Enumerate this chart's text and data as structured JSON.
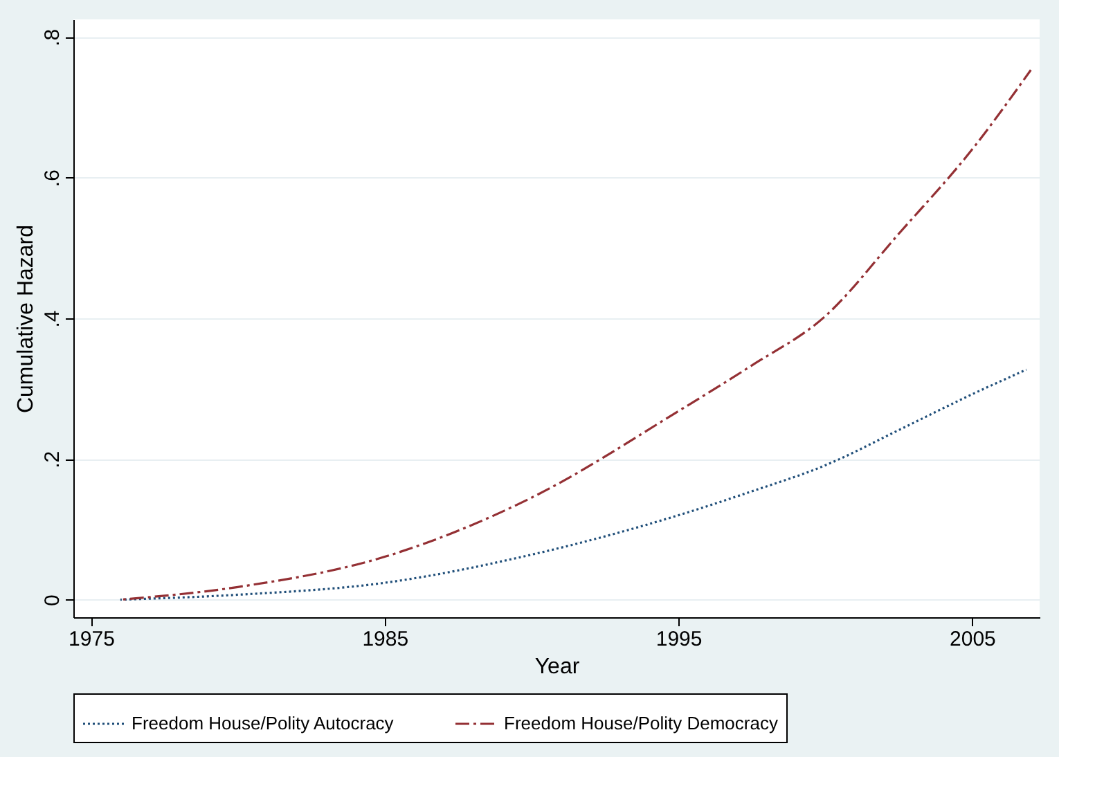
{
  "chart_data": {
    "type": "line",
    "xlabel": "Year",
    "ylabel": "Cumulative Hazard",
    "xlim": [
      1974.4,
      2007.3
    ],
    "ylim": [
      -0.025,
      0.825
    ],
    "xticks": [
      1975,
      1985,
      1995,
      2005
    ],
    "yticks": [
      {
        "value": 0,
        "label": "0"
      },
      {
        "value": 0.2,
        "label": ".2"
      },
      {
        "value": 0.4,
        "label": ".4"
      },
      {
        "value": 0.6,
        "label": ".6"
      },
      {
        "value": 0.8,
        "label": ".8"
      }
    ],
    "grid": "y",
    "legend": "bottom",
    "marker": "none",
    "series": [
      {
        "name": "Freedom House/Polity Autocracy",
        "color": "#1f4e79",
        "line_style": "dotted",
        "x": [
          1976,
          1980,
          1985,
          1990,
          1995,
          1997.5,
          2000,
          2002.5,
          2005,
          2006.85
        ],
        "values": [
          0,
          0.007,
          0.024,
          0.064,
          0.12,
          0.154,
          0.191,
          0.241,
          0.292,
          0.327
        ]
      },
      {
        "name": "Freedom House/Polity Democracy",
        "color": "#943034",
        "line_style": "dashed",
        "x": [
          1976,
          1980,
          1985,
          1990,
          1995,
          1997.5,
          2000,
          2002.5,
          2005,
          2007
        ],
        "values": [
          0,
          0.018,
          0.061,
          0.145,
          0.268,
          0.333,
          0.403,
          0.52,
          0.64,
          0.753
        ]
      }
    ]
  }
}
